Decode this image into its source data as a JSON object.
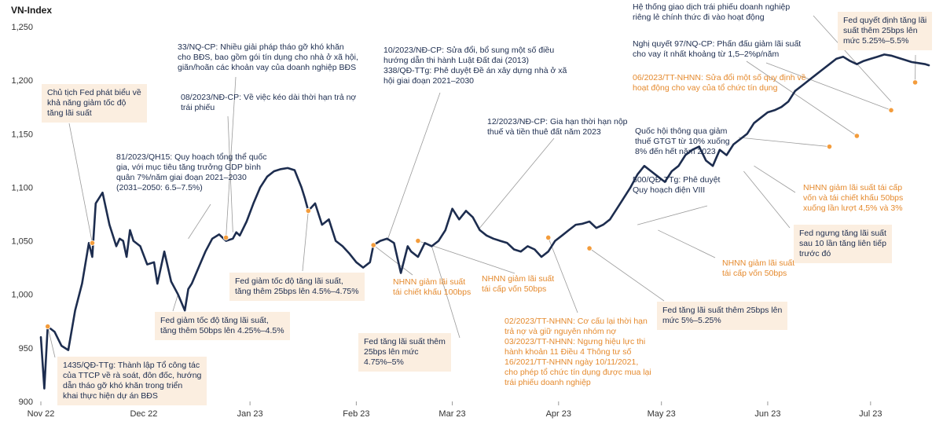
{
  "chart_data": {
    "type": "line",
    "title": "",
    "ylabel": "VN-Index",
    "xlabel": "",
    "ylim": [
      900,
      1250
    ],
    "yticks": [
      "1,250",
      "1,200",
      "1,150",
      "1,100",
      "1,050",
      "1,000",
      "950",
      "900"
    ],
    "ytick_values": [
      1250,
      1200,
      1150,
      1100,
      1050,
      1000,
      950,
      900
    ],
    "xticks": [
      "Nov 22",
      "Dec 22",
      "Jan 23",
      "Feb 23",
      "Mar 23",
      "Apr 23",
      "May 23",
      "Jun 23",
      "Jul 23"
    ],
    "series": [
      {
        "name": "VN-Index",
        "color": "#1d2d4f",
        "x": [
          0,
          1,
          2,
          4,
          6,
          8,
          10,
          12,
          14,
          15,
          16,
          18,
          20,
          22,
          23,
          24,
          25,
          26,
          27,
          29,
          31,
          33,
          34,
          36,
          38,
          40,
          42,
          43,
          44,
          46,
          48,
          50,
          52,
          54,
          56,
          57,
          58,
          60,
          62,
          64,
          66,
          68,
          70,
          72,
          74,
          76,
          77,
          78,
          80,
          82,
          84,
          86,
          88,
          90,
          92,
          94,
          96,
          97,
          99,
          101,
          103,
          105,
          107,
          108,
          110,
          112,
          114,
          116,
          118,
          120,
          122,
          124,
          126,
          128,
          130,
          132,
          134,
          136,
          138,
          140,
          142,
          144,
          146,
          148,
          150,
          152,
          154,
          156,
          158,
          160,
          162,
          164,
          166,
          168,
          170,
          172,
          174,
          176,
          178,
          180,
          182,
          184,
          186,
          188,
          190,
          192,
          194,
          196,
          198,
          200,
          202,
          204,
          206,
          208,
          210,
          212,
          214,
          216,
          218,
          220,
          222,
          224,
          226,
          228,
          230,
          232,
          234,
          236,
          238,
          240,
          242,
          244,
          246,
          248,
          250,
          252,
          254,
          256,
          258,
          259
        ],
        "values": [
          960,
          912,
          970,
          965,
          952,
          948,
          985,
          1010,
          1048,
          1035,
          1085,
          1095,
          1065,
          1045,
          1052,
          1050,
          1035,
          1060,
          1050,
          1045,
          1028,
          1030,
          1010,
          1040,
          1012,
          1000,
          985,
          1005,
          1010,
          1025,
          1040,
          1052,
          1056,
          1050,
          1052,
          1058,
          1055,
          1068,
          1085,
          1100,
          1110,
          1115,
          1117,
          1118,
          1116,
          1100,
          1090,
          1078,
          1085,
          1065,
          1070,
          1050,
          1045,
          1038,
          1030,
          1025,
          1030,
          1046,
          1050,
          1052,
          1048,
          1020,
          1045,
          1040,
          1035,
          1048,
          1045,
          1050,
          1060,
          1080,
          1070,
          1078,
          1072,
          1060,
          1055,
          1052,
          1050,
          1048,
          1042,
          1040,
          1045,
          1042,
          1035,
          1040,
          1050,
          1055,
          1060,
          1065,
          1066,
          1068,
          1062,
          1065,
          1070,
          1080,
          1090,
          1100,
          1112,
          1120,
          1115,
          1110,
          1105,
          1115,
          1120,
          1130,
          1135,
          1138,
          1125,
          1120,
          1135,
          1130,
          1140,
          1145,
          1150,
          1160,
          1165,
          1170,
          1172,
          1175,
          1180,
          1190,
          1195,
          1200,
          1205,
          1210,
          1215,
          1220,
          1222,
          1218,
          1215,
          1218,
          1220,
          1222,
          1224,
          1223,
          1221,
          1219,
          1217,
          1216,
          1215,
          1214
        ]
      }
    ],
    "highlighted_points": [
      {
        "x": 2,
        "value": 970
      },
      {
        "x": 15,
        "value": 1048
      },
      {
        "x": 54,
        "value": 1053
      },
      {
        "x": 78,
        "value": 1078
      },
      {
        "x": 97,
        "value": 1046
      },
      {
        "x": 110,
        "value": 1050
      },
      {
        "x": 148,
        "value": 1053
      },
      {
        "x": 160,
        "value": 1043
      },
      {
        "x": 230,
        "value": 1138
      },
      {
        "x": 238,
        "value": 1148
      },
      {
        "x": 248,
        "value": 1172
      },
      {
        "x": 255,
        "value": 1198
      }
    ]
  },
  "annotations": [
    {
      "id": "fed-chair-speech",
      "style": "box",
      "text": "Chủ tịch Fed phát biểu về\nkhả năng giảm tốc độ\ntăng lãi suất"
    },
    {
      "id": "decision-1435",
      "style": "box",
      "text": "1435/QĐ-TTg: Thành lập Tổ công tác\ncủa TTCP về rà soát, đôn đốc, hướng\ndẫn tháo gỡ khó khăn trong triển\nkhai thực hiện dự án BĐS"
    },
    {
      "id": "resolution-81",
      "style": "navy",
      "text": "81/2023/QH15: Quy hoạch tổng thể quốc\ngia, với mục tiêu tăng trưởng GDP bình\nquân 7%/năm giai đoạn 2021–2030\n(2031–2050: 6.5–7.5%)"
    },
    {
      "id": "fed-dec-hike",
      "style": "box",
      "text": "Fed giảm tốc độ tăng lãi suất,\ntăng thêm 50bps lên 4.25%–4.5%"
    },
    {
      "id": "resolution-33",
      "style": "navy",
      "text": "33/NQ-CP: Nhiều giải pháp tháo gỡ khó khăn\ncho BĐS, bao gồm gói tín dụng cho nhà ở xã hội,\ngiãn/hoãn các khoản vay của doanh nghiệp BĐS"
    },
    {
      "id": "decree-08",
      "style": "navy",
      "text": "08/2023/NĐ-CP: Về việc kéo dài thời hạn trả nợ\ntrái phiếu"
    },
    {
      "id": "fed-feb-hike",
      "style": "box",
      "text": "Fed giảm tốc độ tăng lãi suất,\ntăng thêm 25bps lên 4.5%–4.75%"
    },
    {
      "id": "decree-10",
      "style": "navy",
      "text": "10/2023/NĐ-CP: Sửa đổi, bổ sung một số điều\nhướng dẫn thi hành Luật Đất đai (2013)\n338/QĐ-TTg: Phê duyệt Đề án xây dựng nhà ở xã\nhội giai đoạn 2021–2030"
    },
    {
      "id": "sbv-discount-cut",
      "style": "orange",
      "text": "NHNN giảm lãi suất\ntái chiết khấu 100bps"
    },
    {
      "id": "sbv-refi-cut-1",
      "style": "orange",
      "text": "NHNN giảm lãi suất\ntái cấp vốn 50bps"
    },
    {
      "id": "fed-mar-hike",
      "style": "box",
      "text": "Fed tăng lãi suất thêm\n25bps lên mức\n4.75%–5%"
    },
    {
      "id": "decree-12",
      "style": "navy",
      "text": "12/2023/NĐ-CP: Gia hạn thời hạn nộp\nthuế và tiền thuê đất năm 2023"
    },
    {
      "id": "circular-02-03",
      "style": "orange",
      "text": "02/2023/TT-NHNN: Cơ cấu lại thời hạn\ntrả nợ và giữ nguyên nhóm nợ\n03/2023/TT-NHNN: Ngưng hiệu lực thi\nhành khoản 11 Điều 4 Thông tư số\n16/2021/TT-NHNN ngày 10/11/2021,\ncho phép tổ chức tín dụng được mua lại\ntrái phiếu doanh nghiệp"
    },
    {
      "id": "fed-may-hike",
      "style": "box",
      "text": "Fed tăng lãi suất thêm 25bps lên\nmức 5%–5.25%"
    },
    {
      "id": "decision-500",
      "style": "navy",
      "text": "500/QĐ-TTg: Phê duyệt\nQuy hoạch điện VIII"
    },
    {
      "id": "sbv-refi-cut-2",
      "style": "orange",
      "text": "NHNN giảm lãi suất\ntái cấp vốn 50bps"
    },
    {
      "id": "bond-exchange",
      "style": "navy",
      "text": "Hệ thống giao dịch trái phiếu doanh nghiệp\nriêng lẻ chính thức đi vào hoạt động"
    },
    {
      "id": "resolution-97",
      "style": "navy",
      "text": "Nghị quyết 97/NQ-CP: Phấn đấu giảm lãi suất\ncho vay ít nhất khoảng từ 1,5–2%p/năm"
    },
    {
      "id": "circular-06",
      "style": "orange",
      "text": "06/2023/TT-NHNN: Sửa đổi một số quy định về\nhoạt động cho vay của tổ chức tín dụng"
    },
    {
      "id": "vat-cut",
      "style": "navy",
      "text": "Quốc hội thông qua giảm\nthuế GTGT từ 10% xuống\n8% đến hết năm 2023"
    },
    {
      "id": "sbv-refi-cut-3",
      "style": "orange",
      "text": "NHNN giảm lãi suất tái cấp\nvốn và tái chiết khấu 50bps\nxuống lần lượt 4,5% và 3%"
    },
    {
      "id": "fed-pause",
      "style": "box",
      "text": "Fed ngưng tăng lãi suất\nsau 10 lần tăng liên tiếp\ntrước đó"
    },
    {
      "id": "fed-jul-hike",
      "style": "box",
      "text": "Fed quyết định tăng lãi\nsuất thêm 25bps lên\nmức 5.25%–5.5%"
    }
  ]
}
